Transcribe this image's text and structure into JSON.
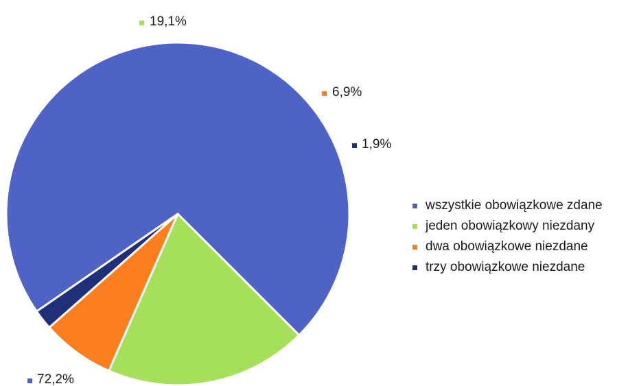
{
  "chart_data": {
    "type": "pie",
    "title": "",
    "slices": [
      {
        "name": "wszystkie obowiązkowe zdane",
        "value": 72.2,
        "label": "72,2%",
        "color": "#4f63c7"
      },
      {
        "name": "jeden obowiązkowy niezdany",
        "value": 19.1,
        "label": "19,1%",
        "color": "#a6e05a"
      },
      {
        "name": "dwa obowiązkowe niezdane",
        "value": 6.9,
        "label": "6,9%",
        "color": "#fb7f1e"
      },
      {
        "name": "trzy obowiązkowe niezdane",
        "value": 1.9,
        "label": "1,9%",
        "color": "#1f2f79"
      }
    ],
    "legend_position": "right",
    "label_style": "outside"
  }
}
